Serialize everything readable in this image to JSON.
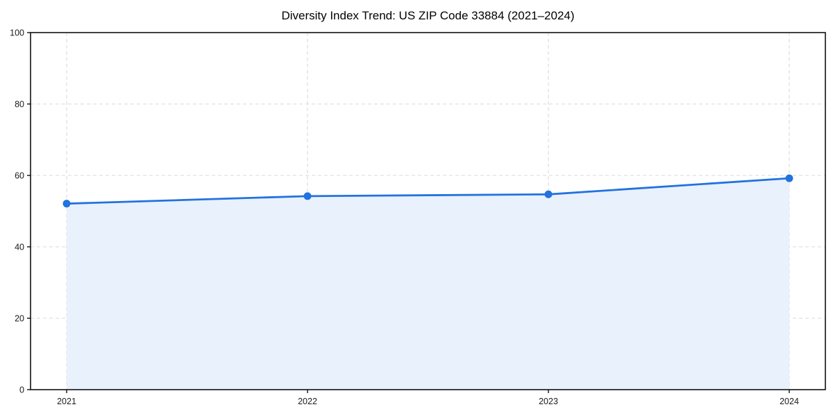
{
  "chart_data": {
    "type": "line",
    "title": "Diversity Index Trend: US ZIP Code 33884 (2021–2024)",
    "categories": [
      "2021",
      "2022",
      "2023",
      "2024"
    ],
    "series": [
      {
        "name": "Diversity Index",
        "values": [
          52.1,
          54.2,
          54.7,
          59.2
        ]
      }
    ],
    "xlabel": "",
    "ylabel": "",
    "ylim": [
      0,
      100
    ],
    "yticks": [
      0,
      20,
      40,
      60,
      80,
      100
    ],
    "grid": true,
    "grid_style": "dashed",
    "legend_position": "none",
    "area_under_line": true,
    "colors": {
      "line": "#2272df",
      "marker": "#2272df",
      "area_fill": "#e9f1fc",
      "grid": "#dadada",
      "spine": "#111111",
      "tick_text": "#1a1a1a",
      "title_text": "#000000",
      "background": "#ffffff"
    }
  }
}
